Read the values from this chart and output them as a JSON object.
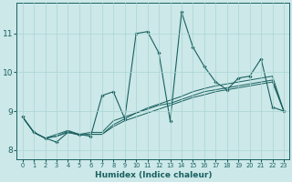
{
  "xlabel": "Humidex (Indice chaleur)",
  "bg_color": "#cce8e8",
  "grid_color": "#aad4d4",
  "line_color": "#1a6060",
  "xlim": [
    -0.5,
    23.5
  ],
  "ylim": [
    7.75,
    11.8
  ],
  "xticks": [
    0,
    1,
    2,
    3,
    4,
    5,
    6,
    7,
    8,
    9,
    10,
    11,
    12,
    13,
    14,
    15,
    16,
    17,
    18,
    19,
    20,
    21,
    22,
    23
  ],
  "yticks": [
    8,
    9,
    10,
    11
  ],
  "series": [
    [
      8.85,
      8.45,
      8.3,
      8.2,
      8.45,
      8.4,
      8.35,
      9.4,
      9.5,
      8.8,
      11.0,
      11.05,
      10.5,
      8.75,
      11.55,
      10.65,
      10.15,
      9.75,
      9.55,
      9.85,
      9.9,
      10.35,
      9.1,
      9.0
    ],
    [
      8.85,
      8.45,
      8.3,
      8.4,
      8.5,
      8.4,
      8.45,
      8.45,
      8.75,
      8.85,
      8.95,
      9.05,
      9.15,
      9.2,
      9.3,
      9.4,
      9.5,
      9.55,
      9.6,
      9.65,
      9.7,
      9.75,
      9.8,
      9.0
    ],
    [
      8.85,
      8.45,
      8.3,
      8.35,
      8.45,
      8.38,
      8.4,
      8.4,
      8.6,
      8.75,
      8.85,
      8.95,
      9.05,
      9.15,
      9.25,
      9.35,
      9.42,
      9.5,
      9.55,
      9.6,
      9.65,
      9.7,
      9.75,
      9.0
    ],
    [
      8.85,
      8.45,
      8.3,
      8.35,
      8.48,
      8.38,
      8.4,
      8.4,
      8.65,
      8.8,
      8.95,
      9.08,
      9.18,
      9.28,
      9.38,
      9.5,
      9.58,
      9.65,
      9.7,
      9.75,
      9.8,
      9.85,
      9.9,
      9.0
    ]
  ]
}
